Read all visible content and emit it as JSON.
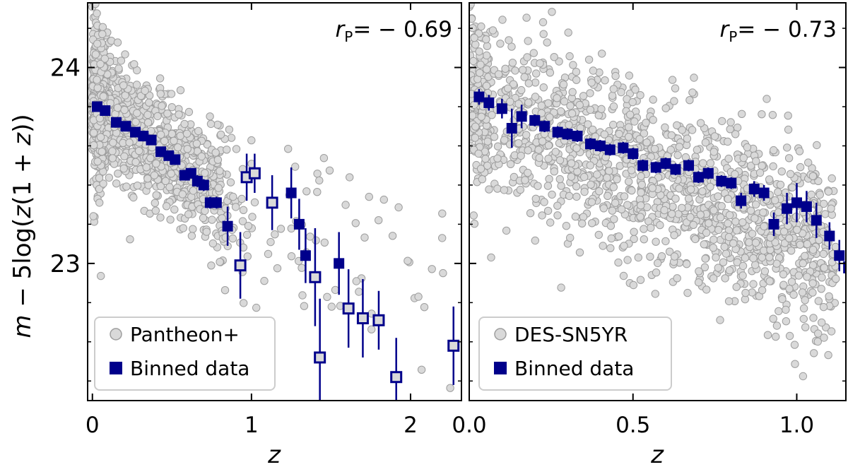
{
  "figure": {
    "ylabel": "m − 5log(z(1 + z))",
    "ylabel_parts": {
      "m": "m",
      "mid": " − 5log(",
      "z1": "z",
      "mid2": "(1 + ",
      "z2": "z",
      "end": "))"
    },
    "colors": {
      "scatter_fill": "#d9d9d9",
      "scatter_edge": "#9e9e9e",
      "binned": "#00008b",
      "open_marker_fill": "#d9d9d9"
    }
  },
  "chart_data": [
    {
      "type": "scatter",
      "xlabel": "z",
      "ylabel": "m − 5log(z(1 + z))",
      "xlim": [
        -0.03,
        2.32
      ],
      "ylim": [
        22.3,
        24.33
      ],
      "xticks": [
        "0",
        "1",
        "2"
      ],
      "xtick_values": [
        0,
        1,
        2
      ],
      "yticks": [
        "23",
        "24"
      ],
      "ytick_values": [
        23,
        24
      ],
      "annotation": {
        "prefix": "r",
        "subscript": "P",
        "value": "= − 0.69"
      },
      "legend": {
        "position": "lower-left",
        "entries": [
          "Pantheon+",
          "Binned data"
        ]
      },
      "series": [
        {
          "name": "Pantheon+",
          "kind": "scatter",
          "approx_n": 1550,
          "trend": [
            [
              0.0,
              23.85
            ],
            [
              0.8,
              23.35
            ]
          ],
          "spread": 0.15
        },
        {
          "name": "Binned data",
          "kind": "errorbar",
          "points": [
            {
              "x": 0.03,
              "y": 23.8,
              "err": 0.02
            },
            {
              "x": 0.08,
              "y": 23.78,
              "err": 0.02
            },
            {
              "x": 0.15,
              "y": 23.72,
              "err": 0.02
            },
            {
              "x": 0.21,
              "y": 23.7,
              "err": 0.02
            },
            {
              "x": 0.27,
              "y": 23.67,
              "err": 0.02
            },
            {
              "x": 0.32,
              "y": 23.65,
              "err": 0.02
            },
            {
              "x": 0.37,
              "y": 23.63,
              "err": 0.02
            },
            {
              "x": 0.43,
              "y": 23.57,
              "err": 0.02
            },
            {
              "x": 0.48,
              "y": 23.55,
              "err": 0.02
            },
            {
              "x": 0.52,
              "y": 23.53,
              "err": 0.02
            },
            {
              "x": 0.58,
              "y": 23.45,
              "err": 0.02
            },
            {
              "x": 0.62,
              "y": 23.46,
              "err": 0.02
            },
            {
              "x": 0.66,
              "y": 23.42,
              "err": 0.03
            },
            {
              "x": 0.7,
              "y": 23.4,
              "err": 0.03
            },
            {
              "x": 0.74,
              "y": 23.31,
              "err": 0.03
            },
            {
              "x": 0.78,
              "y": 23.31,
              "err": 0.03
            },
            {
              "x": 0.85,
              "y": 23.19,
              "err": 0.1
            },
            {
              "x": 0.93,
              "y": 22.99,
              "err": 0.17,
              "open": true
            },
            {
              "x": 0.97,
              "y": 23.44,
              "err": 0.12,
              "open": true
            },
            {
              "x": 1.02,
              "y": 23.46,
              "err": 0.1,
              "open": true
            },
            {
              "x": 1.13,
              "y": 23.31,
              "err": 0.14,
              "open": true
            },
            {
              "x": 1.25,
              "y": 23.36,
              "err": 0.13
            },
            {
              "x": 1.3,
              "y": 23.2,
              "err": 0.13
            },
            {
              "x": 1.34,
              "y": 23.04,
              "err": 0.14
            },
            {
              "x": 1.4,
              "y": 22.93,
              "err": 0.25,
              "open": true
            },
            {
              "x": 1.43,
              "y": 22.52,
              "err": 0.3,
              "open": true
            },
            {
              "x": 1.55,
              "y": 23.0,
              "err": 0.16
            },
            {
              "x": 1.61,
              "y": 22.77,
              "err": 0.2,
              "open": true
            },
            {
              "x": 1.7,
              "y": 22.72,
              "err": 0.2,
              "open": true
            },
            {
              "x": 1.8,
              "y": 22.71,
              "err": 0.15,
              "open": true
            },
            {
              "x": 1.91,
              "y": 22.42,
              "err": 0.2,
              "open": true
            },
            {
              "x": 2.27,
              "y": 22.58,
              "err": 0.2,
              "open": true
            }
          ]
        }
      ]
    },
    {
      "type": "scatter",
      "xlabel": "z",
      "ylabel": "",
      "xlim": [
        0.0,
        1.15
      ],
      "ylim": [
        22.3,
        24.33
      ],
      "xticks": [
        "0.0",
        "0.5",
        "1.0"
      ],
      "xtick_values": [
        0.0,
        0.5,
        1.0
      ],
      "yticks": [
        "23",
        "24"
      ],
      "ytick_values": [
        23,
        24
      ],
      "annotation": {
        "prefix": "r",
        "subscript": "P",
        "value": "= − 0.73"
      },
      "legend": {
        "position": "lower-left",
        "entries": [
          "DES-SN5YR",
          "Binned data"
        ]
      },
      "series": [
        {
          "name": "DES-SN5YR",
          "kind": "scatter",
          "approx_n": 1600,
          "trend": [
            [
              0.0,
              23.83
            ],
            [
              1.1,
              23.05
            ]
          ],
          "spread": 0.22
        },
        {
          "name": "Binned data",
          "kind": "errorbar",
          "points": [
            {
              "x": 0.03,
              "y": 23.85,
              "err": 0.04
            },
            {
              "x": 0.06,
              "y": 23.82,
              "err": 0.04
            },
            {
              "x": 0.1,
              "y": 23.79,
              "err": 0.05
            },
            {
              "x": 0.13,
              "y": 23.69,
              "err": 0.1
            },
            {
              "x": 0.16,
              "y": 23.75,
              "err": 0.06
            },
            {
              "x": 0.2,
              "y": 23.73,
              "err": 0.03
            },
            {
              "x": 0.23,
              "y": 23.7,
              "err": 0.03
            },
            {
              "x": 0.27,
              "y": 23.67,
              "err": 0.03
            },
            {
              "x": 0.3,
              "y": 23.66,
              "err": 0.03
            },
            {
              "x": 0.33,
              "y": 23.65,
              "err": 0.03
            },
            {
              "x": 0.37,
              "y": 23.61,
              "err": 0.03
            },
            {
              "x": 0.4,
              "y": 23.6,
              "err": 0.03
            },
            {
              "x": 0.43,
              "y": 23.58,
              "err": 0.03
            },
            {
              "x": 0.47,
              "y": 23.59,
              "err": 0.03
            },
            {
              "x": 0.5,
              "y": 23.56,
              "err": 0.03
            },
            {
              "x": 0.53,
              "y": 23.5,
              "err": 0.03
            },
            {
              "x": 0.57,
              "y": 23.49,
              "err": 0.03
            },
            {
              "x": 0.6,
              "y": 23.51,
              "err": 0.03
            },
            {
              "x": 0.63,
              "y": 23.48,
              "err": 0.03
            },
            {
              "x": 0.67,
              "y": 23.5,
              "err": 0.03
            },
            {
              "x": 0.7,
              "y": 23.44,
              "err": 0.03
            },
            {
              "x": 0.73,
              "y": 23.46,
              "err": 0.03
            },
            {
              "x": 0.77,
              "y": 23.42,
              "err": 0.03
            },
            {
              "x": 0.8,
              "y": 23.41,
              "err": 0.03
            },
            {
              "x": 0.83,
              "y": 23.32,
              "err": 0.04
            },
            {
              "x": 0.87,
              "y": 23.38,
              "err": 0.04
            },
            {
              "x": 0.9,
              "y": 23.36,
              "err": 0.04
            },
            {
              "x": 0.93,
              "y": 23.2,
              "err": 0.06
            },
            {
              "x": 0.97,
              "y": 23.28,
              "err": 0.08
            },
            {
              "x": 1.0,
              "y": 23.31,
              "err": 0.1
            },
            {
              "x": 1.03,
              "y": 23.29,
              "err": 0.08
            },
            {
              "x": 1.06,
              "y": 23.22,
              "err": 0.09
            },
            {
              "x": 1.1,
              "y": 23.14,
              "err": 0.07
            },
            {
              "x": 1.13,
              "y": 23.04,
              "err": 0.08
            },
            {
              "x": 1.16,
              "y": 22.98,
              "err": 0.08,
              "open": true
            }
          ]
        }
      ]
    }
  ]
}
